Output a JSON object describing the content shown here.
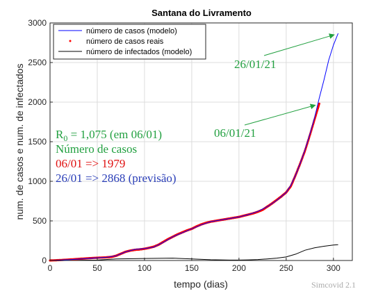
{
  "chart_data": {
    "type": "line",
    "title": "Santana do Livramento",
    "xlabel": "tempo (dias)",
    "ylabel": "num. de casos e num. de infectados",
    "xlim": [
      0,
      320
    ],
    "ylim": [
      0,
      3000
    ],
    "xticks": [
      0,
      50,
      100,
      150,
      200,
      250,
      300
    ],
    "yticks": [
      0,
      500,
      1000,
      1500,
      2000,
      2500,
      3000
    ],
    "grid": true,
    "legend_position": "top-left",
    "series": [
      {
        "name": "número de casos (modelo)",
        "style": "line",
        "color": "#0000ff",
        "x": [
          0,
          20,
          40,
          60,
          70,
          80,
          90,
          100,
          110,
          120,
          130,
          140,
          150,
          160,
          170,
          180,
          190,
          200,
          210,
          220,
          230,
          240,
          250,
          255,
          260,
          265,
          270,
          275,
          280,
          285,
          290,
          295,
          300,
          305
        ],
        "y": [
          0,
          10,
          25,
          40,
          60,
          110,
          140,
          150,
          170,
          230,
          300,
          350,
          400,
          450,
          490,
          510,
          530,
          550,
          580,
          620,
          680,
          760,
          860,
          950,
          1080,
          1230,
          1400,
          1590,
          1800,
          2050,
          2280,
          2530,
          2720,
          2868
        ]
      },
      {
        "name": "número de casos reais",
        "style": "points",
        "color": "#ff0000",
        "x": [
          0,
          10,
          20,
          30,
          40,
          50,
          60,
          65,
          70,
          75,
          80,
          85,
          90,
          95,
          100,
          105,
          110,
          115,
          120,
          125,
          130,
          135,
          140,
          145,
          150,
          155,
          160,
          165,
          170,
          175,
          180,
          185,
          190,
          195,
          200,
          205,
          210,
          215,
          220,
          225,
          230,
          235,
          240,
          245,
          250,
          255,
          260,
          265,
          270,
          275,
          280,
          285
        ],
        "y": [
          0,
          5,
          12,
          20,
          28,
          35,
          40,
          45,
          60,
          85,
          110,
          125,
          135,
          140,
          148,
          160,
          175,
          200,
          235,
          270,
          300,
          330,
          355,
          380,
          400,
          430,
          455,
          475,
          490,
          500,
          510,
          520,
          530,
          540,
          550,
          565,
          580,
          595,
          615,
          640,
          680,
          720,
          765,
          810,
          860,
          940,
          1080,
          1230,
          1390,
          1580,
          1780,
          1979
        ]
      },
      {
        "name": "número de infectados (modelo)",
        "style": "line",
        "color": "#000000",
        "x": [
          0,
          50,
          70,
          100,
          130,
          150,
          170,
          190,
          200,
          210,
          220,
          230,
          240,
          250,
          260,
          270,
          280,
          290,
          300,
          305
        ],
        "y": [
          0,
          5,
          20,
          25,
          30,
          20,
          10,
          5,
          5,
          8,
          12,
          20,
          30,
          45,
          80,
          130,
          160,
          180,
          195,
          200
        ]
      }
    ],
    "annotations": [
      {
        "text": "26/01/21",
        "color": "#22a040",
        "arrow_to_x": 303,
        "arrow_to_y": 2868
      },
      {
        "text": "06/01/21",
        "color": "#22a040",
        "arrow_to_x": 283,
        "arrow_to_y": 1979
      }
    ],
    "notes": [
      {
        "text_main": "R",
        "text_sub": "0",
        "text_rest": " = 1,075 (em 06/01)",
        "color": "#22a040"
      },
      {
        "text": "Número de casos",
        "color": "#22a040"
      },
      {
        "text": "06/01 => 1979",
        "color": "#e01010"
      },
      {
        "text": "26/01 => 2868 (previsão)",
        "color": "#2a3eb8"
      }
    ],
    "watermark": "Simcovid 2.1"
  }
}
